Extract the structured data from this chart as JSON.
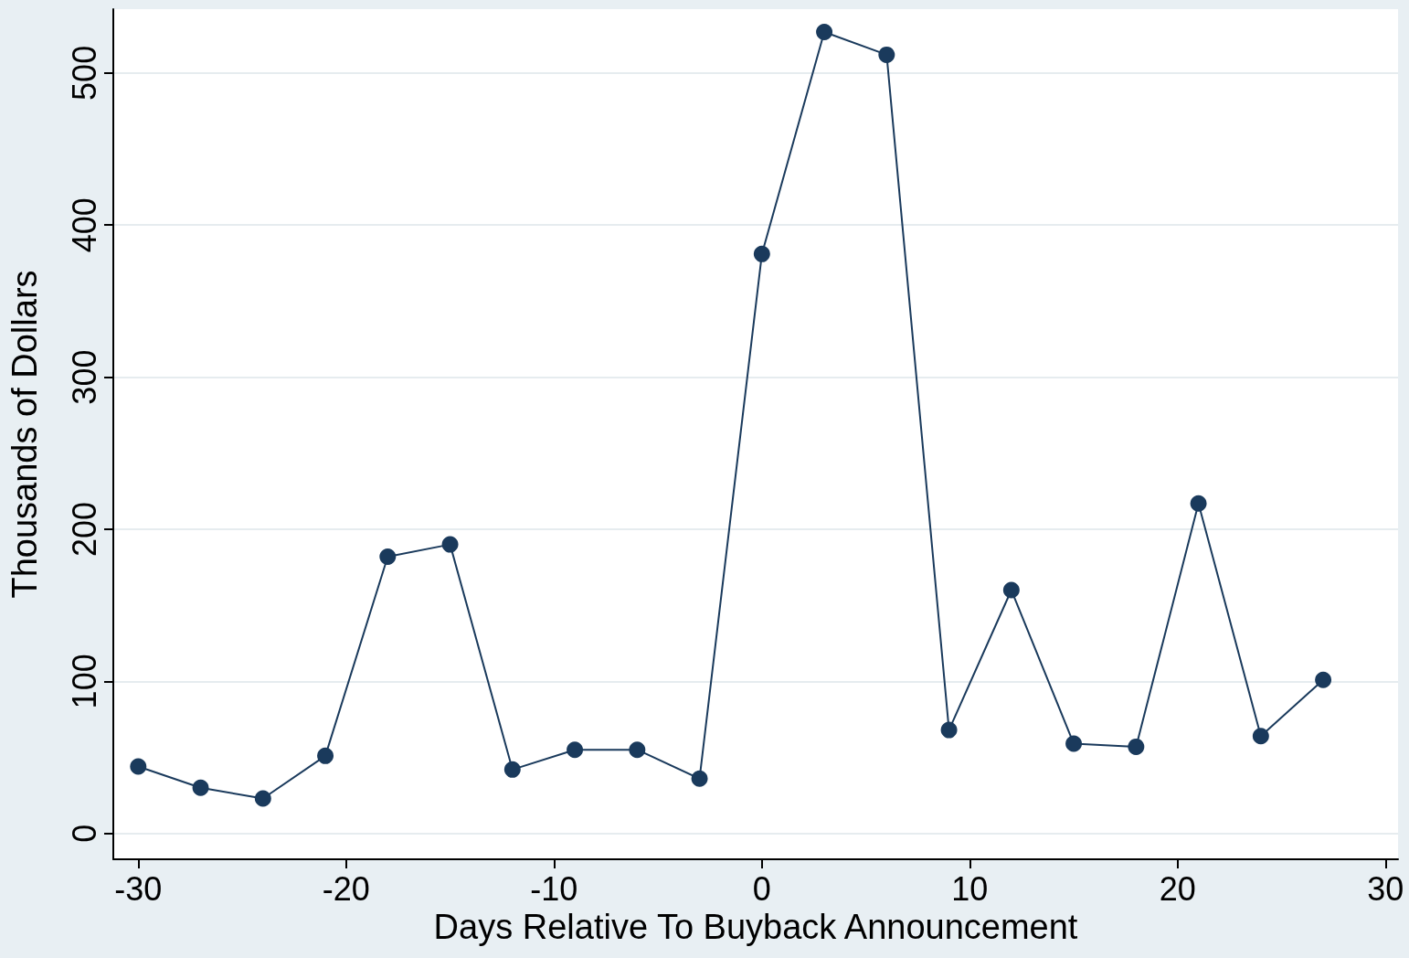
{
  "chart_data": {
    "type": "line",
    "xlabel": "Days Relative To Buyback Announcement",
    "ylabel": "Thousands of Dollars",
    "x": [
      -30,
      -27,
      -24,
      -21,
      -18,
      -15,
      -12,
      -9,
      -6,
      -3,
      0,
      3,
      6,
      9,
      12,
      15,
      18,
      21,
      24,
      27
    ],
    "series": [
      {
        "color": "#1a3a5c",
        "values": [
          44,
          30,
          23,
          51,
          182,
          190,
          42,
          55,
          55,
          36,
          381,
          527,
          512,
          68,
          160,
          59,
          57,
          217,
          64,
          101
        ]
      }
    ],
    "xlim": [
      -31.2,
      30.6
    ],
    "xticks": [
      -30,
      -20,
      -10,
      0,
      10,
      20,
      30
    ],
    "ylim": [
      -17,
      542
    ],
    "yticks": [
      0,
      100,
      200,
      300,
      400,
      500
    ],
    "grid": "y",
    "marker": "circle",
    "line_style": "solid"
  }
}
